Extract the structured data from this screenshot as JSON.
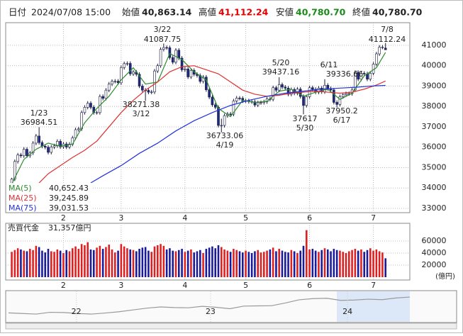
{
  "header": {
    "date_label": "日付",
    "date": "2024/07/08 15:00",
    "open_label": "始値",
    "open": "40,863.14",
    "high_label": "高値",
    "high": "41,112.24",
    "low_label": "安値",
    "low": "40,780.70",
    "close_label": "終値",
    "close": "40,780.70"
  },
  "chart_data": [
    {
      "type": "candlestick",
      "xlim": [
        -2,
        131
      ],
      "ylim": [
        32790,
        42110
      ],
      "yticks": [
        33000,
        34000,
        35000,
        36000,
        37000,
        38000,
        39000,
        40000,
        41000
      ],
      "xticks": [
        {
          "value": 17,
          "label": "2"
        },
        {
          "value": 36,
          "label": "3"
        },
        {
          "value": 57,
          "label": "4"
        },
        {
          "value": 77,
          "label": "5"
        },
        {
          "value": 98,
          "label": "6"
        },
        {
          "value": 119,
          "label": "7"
        }
      ],
      "grid": true,
      "up_color": "#ffffff",
      "down_color": "#1c2a84",
      "edge_color": "#1a1a40",
      "open": [
        33900,
        34440,
        35300,
        35620,
        35580,
        35900,
        35580,
        35720,
        36200,
        36550,
        36230,
        36050,
        36000,
        35750,
        36010,
        36070,
        36290,
        36020,
        36160,
        36010,
        36150,
        36460,
        36860,
        36900,
        37700,
        37960,
        38160,
        37960,
        37700,
        37700,
        38490,
        38400,
        38800,
        39100,
        39230,
        39240,
        39160,
        39910,
        40100,
        40110,
        39600,
        39690,
        39580,
        39000,
        38800,
        38790,
        38700,
        38710,
        39740,
        40000,
        40800,
        40890,
        40880,
        40400,
        40170,
        40760,
        40370,
        39800,
        39840,
        39450,
        39770,
        39580,
        39520,
        39230,
        39440,
        38820,
        38460,
        38080,
        37960,
        37070,
        37070,
        37550,
        37630,
        37620,
        38270,
        38410,
        38400,
        38270,
        38280,
        38240,
        38230,
        38070,
        38180,
        38190,
        38230,
        38370,
        38350,
        38920,
        38800,
        39070,
        38950,
        38900,
        38600,
        38830,
        38650,
        38850,
        38490,
        38050,
        38480,
        38920,
        38840,
        38700,
        38900,
        38720,
        39040,
        38880,
        38810,
        38200,
        38100,
        38480,
        38570,
        38630,
        38630,
        38810,
        39670,
        39340,
        39630,
        39600,
        39340,
        39630,
        40080,
        40580,
        40910,
        40863.14
      ],
      "high": [
        34500,
        35400,
        35720,
        35720,
        36000,
        36000,
        35820,
        36300,
        36650,
        36984,
        36330,
        36150,
        36100,
        36110,
        36170,
        36390,
        36390,
        36260,
        36260,
        36250,
        36560,
        36960,
        37000,
        37800,
        38060,
        38260,
        38260,
        38060,
        37800,
        38590,
        38590,
        38900,
        39200,
        39330,
        39340,
        39340,
        40010,
        40200,
        40210,
        40210,
        39790,
        39790,
        39680,
        39100,
        38900,
        38890,
        38810,
        39840,
        40100,
        40900,
        41087,
        40990,
        40980,
        40500,
        40860,
        40860,
        40470,
        39940,
        39940,
        39870,
        39870,
        39680,
        39620,
        39540,
        39540,
        38920,
        38560,
        38180,
        38060,
        37400,
        37650,
        37730,
        37730,
        38370,
        38510,
        38510,
        38500,
        38380,
        38380,
        38340,
        38330,
        38280,
        38290,
        38330,
        38470,
        38470,
        39020,
        39020,
        39437,
        39170,
        39050,
        39000,
        38930,
        38930,
        38950,
        38950,
        38590,
        38580,
        39020,
        39020,
        38940,
        39000,
        39000,
        39336,
        39140,
        38980,
        38910,
        38300,
        38580,
        38670,
        38730,
        38730,
        38910,
        39770,
        39770,
        39730,
        39730,
        39700,
        39730,
        40180,
        40680,
        41010,
        41010,
        41112.24
      ],
      "low": [
        33800,
        34340,
        35200,
        35480,
        35480,
        35480,
        35480,
        35620,
        36100,
        36130,
        35950,
        35900,
        35650,
        35650,
        35910,
        35970,
        35920,
        35920,
        35910,
        35910,
        36050,
        36360,
        36760,
        36800,
        37600,
        37860,
        37860,
        37600,
        37600,
        37600,
        38300,
        38300,
        38700,
        39000,
        39130,
        39060,
        39060,
        39810,
        40000,
        39500,
        39500,
        39480,
        38900,
        38700,
        38271,
        38600,
        38600,
        38610,
        39640,
        39900,
        40700,
        40780,
        40300,
        40070,
        40070,
        40270,
        39700,
        39700,
        39350,
        39350,
        39480,
        39420,
        39130,
        39130,
        38720,
        38360,
        37980,
        37860,
        36970,
        36733,
        36970,
        37450,
        37520,
        37520,
        38170,
        38300,
        38170,
        38170,
        38140,
        38130,
        37970,
        37970,
        38080,
        38090,
        38130,
        38250,
        38250,
        38700,
        38700,
        38850,
        38800,
        38500,
        38500,
        38550,
        38550,
        38390,
        37617,
        37950,
        38380,
        38740,
        38600,
        38600,
        38620,
        38620,
        38780,
        38710,
        38100,
        37950,
        38000,
        38380,
        38470,
        38530,
        38530,
        38710,
        39240,
        39240,
        39500,
        39240,
        39240,
        39530,
        39980,
        40480,
        40810,
        40780.7
      ],
      "close": [
        34440,
        35300,
        35620,
        35580,
        35900,
        35580,
        35720,
        36200,
        36550,
        36230,
        36050,
        36000,
        35750,
        36010,
        36070,
        36290,
        36020,
        36160,
        36010,
        36150,
        36460,
        36860,
        36900,
        37700,
        37960,
        38160,
        37960,
        37700,
        37700,
        38490,
        38400,
        38800,
        39100,
        39230,
        39240,
        39160,
        39910,
        40100,
        40110,
        39600,
        39690,
        39580,
        39000,
        38800,
        38790,
        38700,
        38710,
        39740,
        40000,
        40800,
        40890,
        40880,
        40400,
        40170,
        40760,
        40370,
        39800,
        39840,
        39450,
        39770,
        39580,
        39520,
        39230,
        39440,
        38820,
        38460,
        38080,
        37960,
        37070,
        37070,
        37550,
        37630,
        37620,
        38270,
        38410,
        38400,
        38270,
        38280,
        38240,
        38230,
        38070,
        38180,
        38190,
        38230,
        38370,
        38350,
        38920,
        38800,
        39070,
        38950,
        38900,
        38600,
        38830,
        38650,
        38850,
        38490,
        38050,
        38480,
        38920,
        38840,
        38700,
        38900,
        38720,
        39040,
        38880,
        38810,
        38200,
        38100,
        38480,
        38570,
        38630,
        38630,
        38810,
        39670,
        39340,
        39630,
        39600,
        39340,
        39630,
        40080,
        40580,
        40910,
        40910,
        40780.7
      ],
      "series": [
        {
          "name": "MA(5)",
          "color": "#2e8b2e",
          "value_label": "40,652.43",
          "x": [
            0,
            4,
            8,
            12,
            16,
            20,
            24,
            28,
            32,
            36,
            40,
            44,
            48,
            52,
            56,
            60,
            64,
            68,
            72,
            76,
            80,
            84,
            88,
            92,
            96,
            100,
            104,
            108,
            112,
            116,
            120,
            123
          ],
          "values": [
            34200,
            35400,
            35900,
            36200,
            36050,
            36150,
            37200,
            37900,
            38500,
            39300,
            39900,
            39100,
            39200,
            40600,
            40300,
            39700,
            39300,
            37900,
            37500,
            38300,
            38200,
            38250,
            38750,
            38850,
            38500,
            38700,
            38850,
            38350,
            38650,
            39500,
            39900,
            40652.43
          ]
        },
        {
          "name": "MA(25)",
          "color": "#e03030",
          "value_label": "39,245.89",
          "x": [
            9,
            12,
            16,
            20,
            24,
            28,
            32,
            36,
            40,
            44,
            48,
            52,
            56,
            60,
            64,
            68,
            72,
            76,
            80,
            84,
            88,
            92,
            96,
            100,
            104,
            108,
            112,
            116,
            120,
            123
          ],
          "values": [
            34250,
            34700,
            35100,
            35500,
            35850,
            36300,
            37000,
            37700,
            38300,
            38800,
            39200,
            39700,
            39950,
            40000,
            39800,
            39600,
            39200,
            38800,
            38600,
            38500,
            38550,
            38650,
            38700,
            38750,
            38700,
            38650,
            38700,
            38850,
            39050,
            39245.89
          ]
        },
        {
          "name": "MA(75)",
          "color": "#2233dd",
          "value_label": "39,031.53",
          "x": [
            26,
            30,
            36,
            42,
            48,
            54,
            60,
            66,
            72,
            78,
            84,
            90,
            96,
            102,
            108,
            114,
            118,
            123
          ],
          "values": [
            34250,
            34600,
            35100,
            35700,
            36200,
            36800,
            37300,
            37700,
            38050,
            38300,
            38500,
            38650,
            38750,
            38850,
            38900,
            38950,
            39000,
            39031.53
          ]
        }
      ],
      "annotations": [
        {
          "date": "1/23",
          "value": 36984.51
        },
        {
          "date": "3/22",
          "value": 41087.75
        },
        {
          "date": "3/12",
          "value": 38271.38
        },
        {
          "date": "4/19",
          "value": 36733.06
        },
        {
          "date": "5/20",
          "value": 39437.16
        },
        {
          "date": "5/30",
          "value": 37617.0
        },
        {
          "date": "6/11",
          "value": 39336.66
        },
        {
          "date": "6/17",
          "value": 37950.2
        },
        {
          "date": "7/8",
          "value": 41112.24
        }
      ]
    },
    {
      "type": "bar",
      "title": "売買代金",
      "total_label": "31,357億円",
      "unit": "(億円)",
      "xlim": [
        -2,
        131
      ],
      "ylim": [
        0,
        89400
      ],
      "yticks": [
        20000,
        40000,
        60000
      ],
      "xticks": [
        {
          "value": 17,
          "label": "2"
        },
        {
          "value": 36,
          "label": "3"
        },
        {
          "value": 57,
          "label": "4"
        },
        {
          "value": 77,
          "label": "5"
        },
        {
          "value": 98,
          "label": "6"
        },
        {
          "value": 119,
          "label": "7"
        }
      ],
      "up_color": "#e02020",
      "down_color": "#1a1a9c",
      "values": [
        42000,
        45000,
        48000,
        46000,
        44000,
        43000,
        47000,
        45000,
        52000,
        50000,
        44000,
        41000,
        47000,
        43000,
        42000,
        46000,
        44000,
        40000,
        45000,
        43000,
        48000,
        51000,
        47000,
        55000,
        53000,
        58000,
        46000,
        45000,
        49000,
        52000,
        47000,
        50000,
        54000,
        46000,
        41000,
        44000,
        55000,
        51000,
        48000,
        46000,
        45000,
        43000,
        47000,
        49000,
        50000,
        44000,
        42000,
        51000,
        53000,
        55000,
        52000,
        46000,
        48000,
        44000,
        43000,
        45000,
        47000,
        42000,
        44000,
        46000,
        41000,
        43000,
        45000,
        40000,
        47000,
        49000,
        51000,
        48000,
        53000,
        50000,
        46000,
        44000,
        42000,
        47000,
        45000,
        43000,
        41000,
        44000,
        42000,
        40000,
        43000,
        45000,
        41000,
        42000,
        44000,
        46000,
        49000,
        43000,
        47000,
        44000,
        42000,
        41000,
        45000,
        43000,
        40000,
        44000,
        52000,
        78000,
        46000,
        47000,
        44000,
        42000,
        45000,
        48000,
        46000,
        43000,
        47000,
        45000,
        44000,
        42000,
        40000,
        43000,
        45000,
        47000,
        44000,
        46000,
        42000,
        45000,
        48000,
        44000,
        46000,
        43000,
        41000,
        31357
      ]
    },
    {
      "type": "area",
      "xlim": [
        0,
        29
      ],
      "ylim": [
        20000,
        45000
      ],
      "color": "#9a9a9a",
      "xticks": [
        {
          "value": 4.9,
          "label": "22"
        },
        {
          "value": 14.6,
          "label": "23"
        },
        {
          "value": 24.5,
          "label": "24"
        }
      ],
      "values": [
        27500,
        27000,
        26500,
        28000,
        27800,
        27000,
        26500,
        27400,
        28500,
        30000,
        31500,
        32500,
        32000,
        31800,
        33000,
        32200,
        31000,
        33200,
        33400,
        33500,
        35800,
        38500,
        39500,
        39800,
        38000,
        38300,
        39000,
        38600,
        40000,
        40800
      ]
    }
  ]
}
